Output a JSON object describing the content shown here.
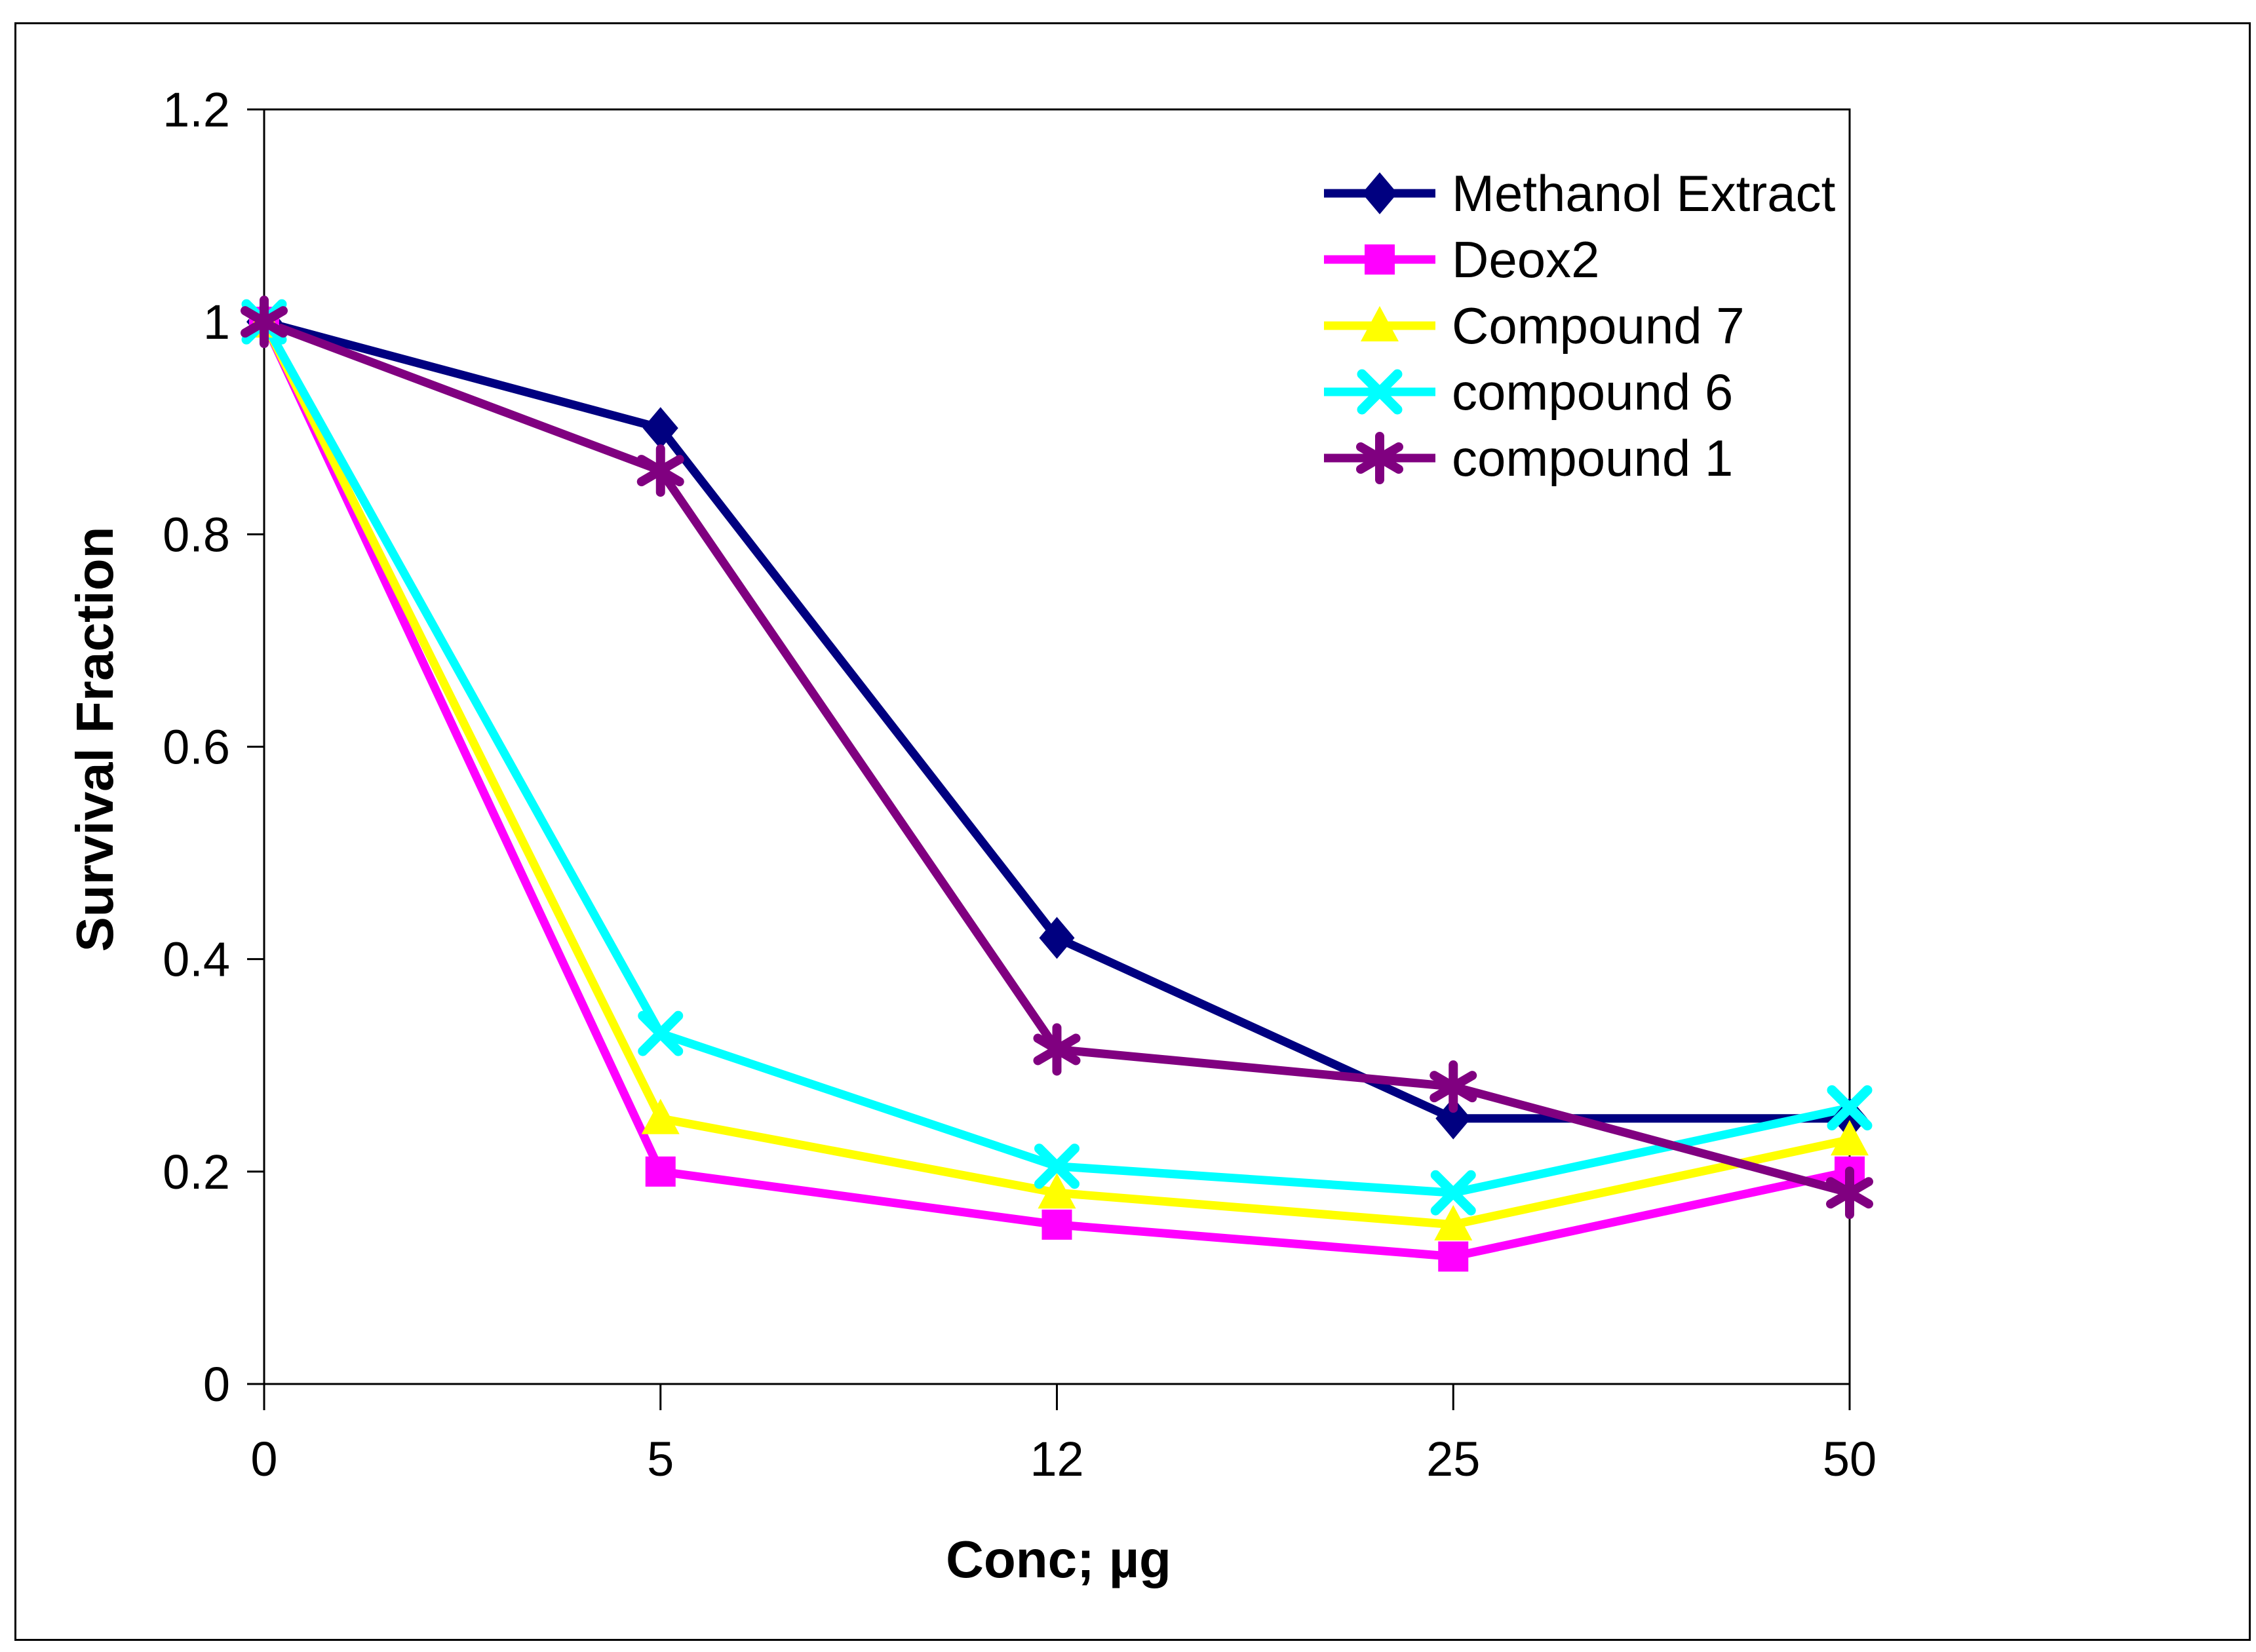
{
  "chart_data": {
    "type": "line",
    "title": "",
    "xlabel": "Conc; µg",
    "ylabel": "Survival Fraction",
    "categories": [
      "0",
      "5",
      "12",
      "25",
      "50"
    ],
    "y_tick_labels": [
      "0",
      "0.2",
      "0.4",
      "0.6",
      "0.8",
      "1",
      "1.2"
    ],
    "y_tick_values": [
      0,
      0.2,
      0.4,
      0.6,
      0.8,
      1,
      1.2
    ],
    "ylim": [
      0,
      1.2
    ],
    "grid": false,
    "legend_position": "inside-top-right",
    "series": [
      {
        "name": "Methanol Extract",
        "color": "#000080",
        "marker": "diamond",
        "values": [
          1,
          0.9,
          0.42,
          0.25,
          0.25
        ]
      },
      {
        "name": "Deox2",
        "color": "#FF00FF",
        "marker": "square",
        "values": [
          1,
          0.2,
          0.15,
          0.12,
          0.2
        ]
      },
      {
        "name": "Compound 7",
        "color": "#FFFF00",
        "marker": "triangle",
        "values": [
          1,
          0.25,
          0.18,
          0.15,
          0.23
        ]
      },
      {
        "name": "compound 6",
        "color": "#00FFFF",
        "marker": "x",
        "values": [
          1,
          0.33,
          0.205,
          0.18,
          0.26
        ]
      },
      {
        "name": "compound 1",
        "color": "#800080",
        "marker": "star",
        "values": [
          1,
          0.86,
          0.315,
          0.28,
          0.18
        ]
      }
    ]
  }
}
